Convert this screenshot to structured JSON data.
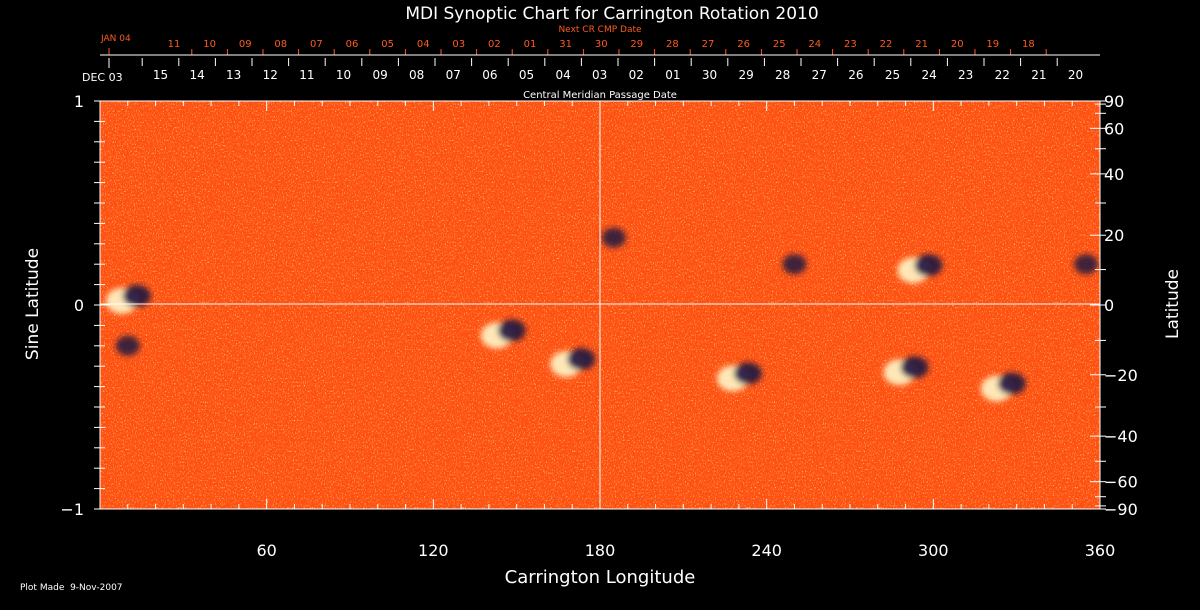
{
  "chart_data": {
    "type": "heatmap",
    "title": "MDI Synoptic Chart for Carrington Rotation 2010",
    "xlabel": "Carrington Longitude",
    "ylabel_left": "Sine Latitude",
    "ylabel_right": "Latitude",
    "xlim": [
      0,
      360
    ],
    "ylim": [
      -1,
      1
    ],
    "x_ticks": [
      60,
      120,
      180,
      240,
      300,
      360
    ],
    "y_left_ticks": [
      {
        "value": 1,
        "label": "1"
      },
      {
        "value": 0,
        "label": "0"
      },
      {
        "value": -1,
        "label": "−1"
      }
    ],
    "y_right_ticks": [
      90,
      60,
      40,
      20,
      0,
      -20,
      -40,
      -60,
      -90
    ],
    "y_right_labels": [
      "90",
      "60",
      "40",
      "20",
      "0",
      "−20",
      "−40",
      "−60",
      "−90"
    ],
    "cmp_axis_label": "Central Meridian Passage Date",
    "cmp_start_label": "DEC 03",
    "cmp_dates": [
      "15",
      "14",
      "13",
      "12",
      "11",
      "10",
      "09",
      "08",
      "07",
      "06",
      "05",
      "04",
      "03",
      "02",
      "01",
      "30",
      "29",
      "28",
      "27",
      "26",
      "25",
      "24",
      "23",
      "22",
      "21",
      "20"
    ],
    "next_cr_label": "Next CR CMP Date",
    "next_cr_start_label": "JAN 04",
    "next_cr_dates": [
      "11",
      "10",
      "09",
      "08",
      "07",
      "06",
      "05",
      "04",
      "03",
      "02",
      "01",
      "31",
      "30",
      "29",
      "28",
      "27",
      "26",
      "25",
      "24",
      "23",
      "22",
      "21",
      "20",
      "19",
      "18"
    ],
    "footer": "Plot Made  9-Nov-2007",
    "colors": {
      "background_field": "#ff5012",
      "positive_polarity": "#fff6c8",
      "negative_polarity": "#1e1440",
      "text": "#ffffff",
      "date_text_orange": "#ff5a1e"
    },
    "active_regions": [
      {
        "lon": 10,
        "sinlat": 0.03,
        "polarity": "bipolar"
      },
      {
        "lon": 10,
        "sinlat": -0.2,
        "polarity": "negative"
      },
      {
        "lon": 145,
        "sinlat": -0.14,
        "polarity": "bipolar"
      },
      {
        "lon": 170,
        "sinlat": -0.28,
        "polarity": "bipolar"
      },
      {
        "lon": 185,
        "sinlat": 0.33,
        "polarity": "negative"
      },
      {
        "lon": 230,
        "sinlat": -0.35,
        "polarity": "bipolar"
      },
      {
        "lon": 250,
        "sinlat": 0.2,
        "polarity": "negative"
      },
      {
        "lon": 290,
        "sinlat": -0.32,
        "polarity": "bipolar"
      },
      {
        "lon": 295,
        "sinlat": 0.18,
        "polarity": "bipolar"
      },
      {
        "lon": 325,
        "sinlat": -0.4,
        "polarity": "bipolar"
      },
      {
        "lon": 355,
        "sinlat": 0.2,
        "polarity": "negative"
      }
    ]
  }
}
